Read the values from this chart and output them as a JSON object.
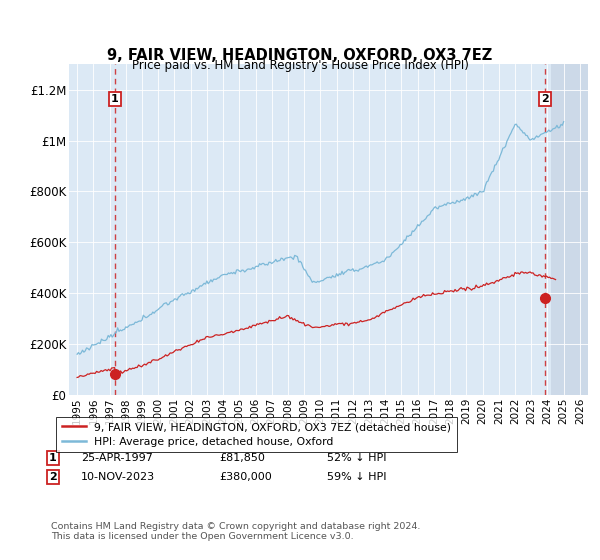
{
  "title": "9, FAIR VIEW, HEADINGTON, OXFORD, OX3 7EZ",
  "subtitle": "Price paid vs. HM Land Registry's House Price Index (HPI)",
  "ylim": [
    0,
    1300000
  ],
  "yticks": [
    0,
    200000,
    400000,
    600000,
    800000,
    1000000,
    1200000
  ],
  "ytick_labels": [
    "£0",
    "£200K",
    "£400K",
    "£600K",
    "£800K",
    "£1M",
    "£1.2M"
  ],
  "hpi_color": "#7db9d8",
  "price_color": "#cc2222",
  "bg_color": "#dce9f5",
  "hatch_region_color": "#ccd9e8",
  "sale1_x": 1997.32,
  "sale1_y": 81850,
  "sale2_x": 2023.87,
  "sale2_y": 380000,
  "legend_entry1": "9, FAIR VIEW, HEADINGTON, OXFORD, OX3 7EZ (detached house)",
  "legend_entry2": "HPI: Average price, detached house, Oxford",
  "footer": "Contains HM Land Registry data © Crown copyright and database right 2024.\nThis data is licensed under the Open Government Licence v3.0.",
  "xmin": 1994.5,
  "xmax": 2026.5
}
